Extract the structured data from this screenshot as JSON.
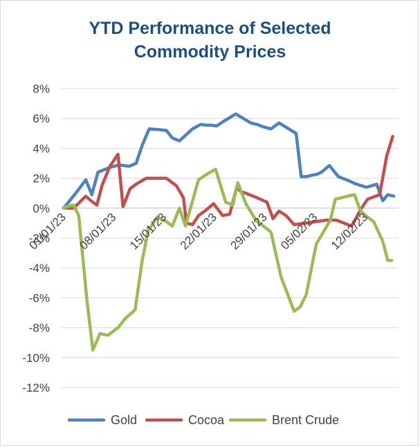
{
  "chart_data": {
    "type": "line",
    "title": "YTD Performance of Selected Commodity Prices",
    "title_lines": [
      "YTD Performance of Selected",
      "Commodity Prices"
    ],
    "xlabel": "",
    "ylabel": "",
    "ylim": [
      -12,
      8
    ],
    "yticks": [
      8,
      6,
      4,
      2,
      0,
      -2,
      -4,
      -6,
      -8,
      -10,
      -12
    ],
    "ytick_labels": [
      "8%",
      "6%",
      "4%",
      "2%",
      "0%",
      "-2%",
      "-4%",
      "-6%",
      "-8%",
      "-10%",
      "-12%"
    ],
    "xlim": [
      0,
      33
    ],
    "xticks": [
      0,
      5,
      10,
      15,
      20,
      25,
      30
    ],
    "xtick_labels": [
      "01/01/23",
      "08/01/23",
      "15/01/23",
      "22/01/23",
      "29/01/23",
      "05/02/23",
      "12/02/23"
    ],
    "grid": true,
    "legend_position": "bottom",
    "series": [
      {
        "name": "Gold",
        "color": "#4f81bd",
        "x": [
          0,
          1.2,
          2.2,
          2.8,
          3.4,
          4.5,
          5.5,
          6.5,
          7.2,
          7.8,
          8.5,
          9.5,
          10.2,
          10.8,
          11.5,
          12.8,
          13.6,
          14.2,
          14.6,
          15.2,
          16.1,
          17.1,
          18.6,
          19.2,
          19.8,
          20.6,
          21.4,
          23.1,
          23.6,
          24.1,
          24.6,
          25.1,
          25.6,
          26.4,
          27.3,
          28.1,
          29.1,
          30.1,
          31.1,
          31.7,
          32.2,
          32.8
        ],
        "values": [
          0.0,
          1.0,
          1.9,
          0.9,
          2.4,
          2.7,
          2.9,
          2.8,
          3.0,
          4.2,
          5.3,
          5.25,
          5.2,
          4.7,
          4.5,
          5.3,
          5.6,
          5.55,
          5.55,
          5.5,
          5.9,
          6.3,
          5.7,
          5.6,
          5.45,
          5.3,
          5.7,
          5.0,
          2.1,
          2.1,
          2.2,
          2.25,
          2.4,
          2.85,
          2.1,
          1.9,
          1.6,
          1.4,
          1.6,
          0.5,
          0.9,
          0.8
        ]
      },
      {
        "name": "Cocoa",
        "color": "#c0504d",
        "x": [
          0,
          1,
          2.2,
          2.7,
          3.3,
          3.8,
          4.6,
          5.4,
          5.9,
          6.6,
          7.2,
          8.2,
          9.2,
          10.2,
          11.2,
          11.9,
          12.2,
          12.8,
          13.4,
          14.2,
          14.9,
          15.8,
          16.5,
          17.2,
          17.6,
          18.1,
          19.2,
          20.2,
          20.8,
          21.4,
          22.1,
          22.9,
          24.1,
          25.1,
          26.1,
          27.1,
          28.6,
          29.1,
          29.5,
          30.2,
          31.4,
          32.1,
          32.7
        ],
        "values": [
          0.0,
          0.0,
          0.8,
          0.5,
          0.2,
          1.5,
          2.8,
          3.6,
          0.1,
          1.3,
          1.6,
          2.0,
          2.0,
          2.0,
          1.5,
          0.7,
          -1.0,
          -1.1,
          -0.5,
          -0.1,
          0.3,
          -0.5,
          -0.4,
          1.4,
          1.1,
          1.0,
          0.7,
          0.4,
          -0.7,
          -0.2,
          -0.5,
          -1.1,
          -1.0,
          -0.9,
          -0.8,
          -0.8,
          -1.2,
          -0.6,
          -0.1,
          0.6,
          0.9,
          3.5,
          4.8
        ]
      },
      {
        "name": "Brent Crude",
        "color": "#9bbb59",
        "x": [
          0,
          0.5,
          1,
          1.5,
          2.3,
          2.9,
          3.6,
          4.4,
          5.4,
          6.1,
          7.1,
          7.8,
          8.4,
          9.3,
          10.2,
          10.8,
          11.5,
          12.1,
          12.6,
          13.4,
          14.3,
          15.1,
          16.1,
          16.8,
          17.3,
          18.1,
          19.1,
          20.6,
          21.6,
          22.9,
          23.5,
          24.1,
          25.1,
          26.5,
          27.0,
          27.6,
          28.2,
          28.9,
          29.5,
          30.2,
          30.8,
          31.7,
          32.2,
          32.6
        ],
        "values": [
          0.0,
          0.15,
          0.2,
          -0.5,
          -6.1,
          -9.5,
          -8.4,
          -8.5,
          -8.0,
          -7.4,
          -6.8,
          -3.5,
          -1.5,
          -0.6,
          -0.9,
          -1.2,
          0.0,
          -1.2,
          0.0,
          1.9,
          2.3,
          2.6,
          0.4,
          0.2,
          1.7,
          0.3,
          -0.8,
          -1.6,
          -4.6,
          -6.9,
          -6.6,
          -5.8,
          -2.4,
          -0.8,
          0.6,
          0.7,
          0.8,
          0.9,
          -0.2,
          -0.6,
          -0.9,
          -2.2,
          -3.5,
          -3.5
        ]
      }
    ]
  }
}
